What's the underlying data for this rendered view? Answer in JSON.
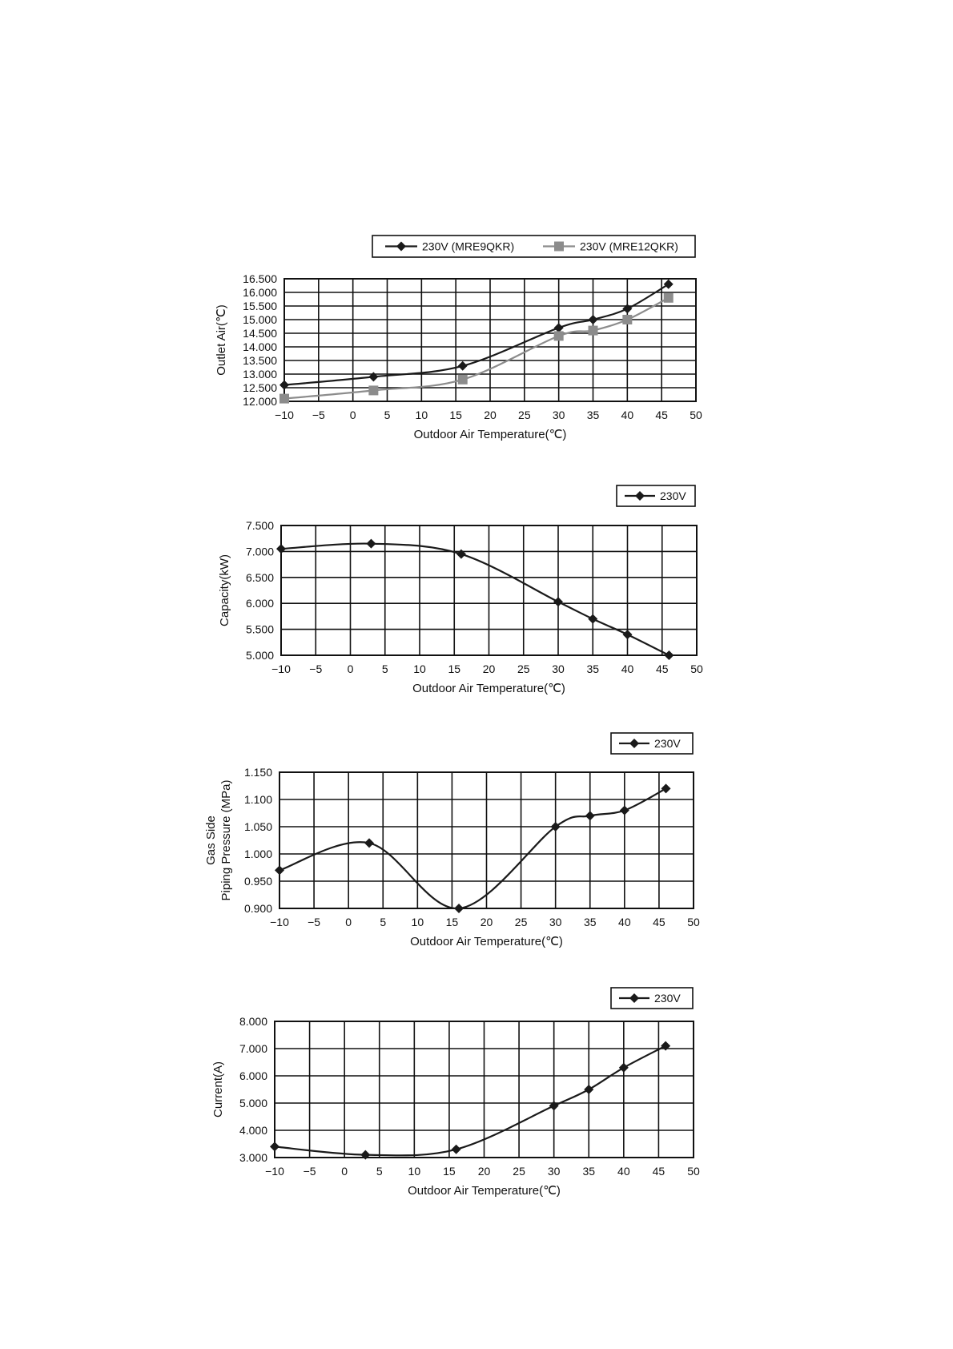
{
  "chart_data": [
    {
      "type": "line",
      "title": "",
      "xlabel": "Outdoor Air Temperature(℃)",
      "ylabel": "Outlet Air(℃)",
      "xlim": [
        -10,
        50
      ],
      "ylim": [
        12,
        16.5
      ],
      "xticks": [
        "−10",
        "−5",
        "0",
        "5",
        "10",
        "15",
        "20",
        "25",
        "30",
        "35",
        "40",
        "45",
        "50"
      ],
      "yticks": [
        "12.000",
        "12.500",
        "13.000",
        "13.500",
        "14.000",
        "14.500",
        "15.000",
        "15.500",
        "16.000",
        "16.500"
      ],
      "grid": true,
      "legend": "top-right",
      "series": [
        {
          "name": "230V (MRE9QKR)",
          "marker": "diamond",
          "color": "#1a1a1a",
          "x": [
            -10,
            3,
            16,
            30,
            35,
            40,
            46
          ],
          "y": [
            12.6,
            12.9,
            13.3,
            14.7,
            15.0,
            15.4,
            16.3
          ]
        },
        {
          "name": "230V (MRE12QKR)",
          "marker": "square",
          "color": "#8c8c8c",
          "x": [
            -10,
            3,
            16,
            30,
            35,
            40,
            46
          ],
          "y": [
            12.1,
            12.4,
            12.8,
            14.4,
            14.6,
            15.0,
            15.8
          ]
        }
      ]
    },
    {
      "type": "line",
      "title": "",
      "xlabel": "Outdoor Air Temperature(℃)",
      "ylabel": "Capacity(kW)",
      "xlim": [
        -10,
        50
      ],
      "ylim": [
        5,
        7.5
      ],
      "xticks": [
        "−10",
        "−5",
        "0",
        "5",
        "10",
        "15",
        "20",
        "25",
        "30",
        "35",
        "40",
        "45",
        "50"
      ],
      "yticks": [
        "5.000",
        "5.500",
        "6.000",
        "6.500",
        "7.000",
        "7.500"
      ],
      "grid": true,
      "legend": "top-right",
      "series": [
        {
          "name": "230V",
          "marker": "diamond",
          "color": "#1a1a1a",
          "x": [
            -10,
            3,
            16,
            30,
            35,
            40,
            46
          ],
          "y": [
            7.05,
            7.15,
            6.95,
            6.03,
            5.7,
            5.4,
            5.0
          ]
        }
      ]
    },
    {
      "type": "line",
      "title": "",
      "xlabel": "Outdoor Air Temperature(℃)",
      "ylabel": [
        "Gas Side",
        "Piping Pressure (MPa)"
      ],
      "xlim": [
        -10,
        50
      ],
      "ylim": [
        0.9,
        1.15
      ],
      "xticks": [
        "−10",
        "−5",
        "0",
        "5",
        "10",
        "15",
        "20",
        "25",
        "30",
        "35",
        "40",
        "45",
        "50"
      ],
      "yticks": [
        "0.900",
        "0.950",
        "1.000",
        "1.050",
        "1.100",
        "1.150"
      ],
      "grid": true,
      "legend": "top-right",
      "series": [
        {
          "name": "230V",
          "marker": "diamond",
          "color": "#1a1a1a",
          "x": [
            -10,
            3,
            16,
            30,
            35,
            40,
            46
          ],
          "y": [
            0.97,
            1.02,
            0.9,
            1.05,
            1.07,
            1.08,
            1.12
          ]
        }
      ]
    },
    {
      "type": "line",
      "title": "",
      "xlabel": "Outdoor Air Temperature(℃)",
      "ylabel": "Current(A)",
      "xlim": [
        -10,
        50
      ],
      "ylim": [
        3,
        8
      ],
      "xticks": [
        "−10",
        "−5",
        "0",
        "5",
        "10",
        "15",
        "20",
        "25",
        "30",
        "35",
        "40",
        "45",
        "50"
      ],
      "yticks": [
        "3.000",
        "4.000",
        "5.000",
        "6.000",
        "7.000",
        "8.000"
      ],
      "grid": true,
      "legend": "top-right",
      "series": [
        {
          "name": "230V",
          "marker": "diamond",
          "color": "#1a1a1a",
          "x": [
            -10,
            3,
            16,
            30,
            35,
            40,
            46
          ],
          "y": [
            3.4,
            3.1,
            3.3,
            4.9,
            5.5,
            6.3,
            7.1
          ]
        }
      ]
    }
  ]
}
